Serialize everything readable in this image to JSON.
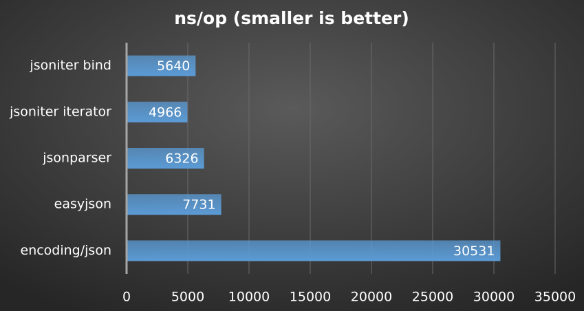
{
  "chart_data": {
    "type": "bar",
    "orientation": "horizontal",
    "title": "ns/op (smaller is better)",
    "categories": [
      "jsoniter bind",
      "jsoniter iterator",
      "jsonparser",
      "easyjson",
      "encoding/json"
    ],
    "values": [
      5640,
      4966,
      6326,
      7731,
      30531
    ],
    "color": "#5b9bd5",
    "xlim": [
      0,
      35000
    ],
    "xticks": [
      0,
      5000,
      10000,
      15000,
      20000,
      25000,
      30000,
      35000
    ],
    "grid": true
  }
}
